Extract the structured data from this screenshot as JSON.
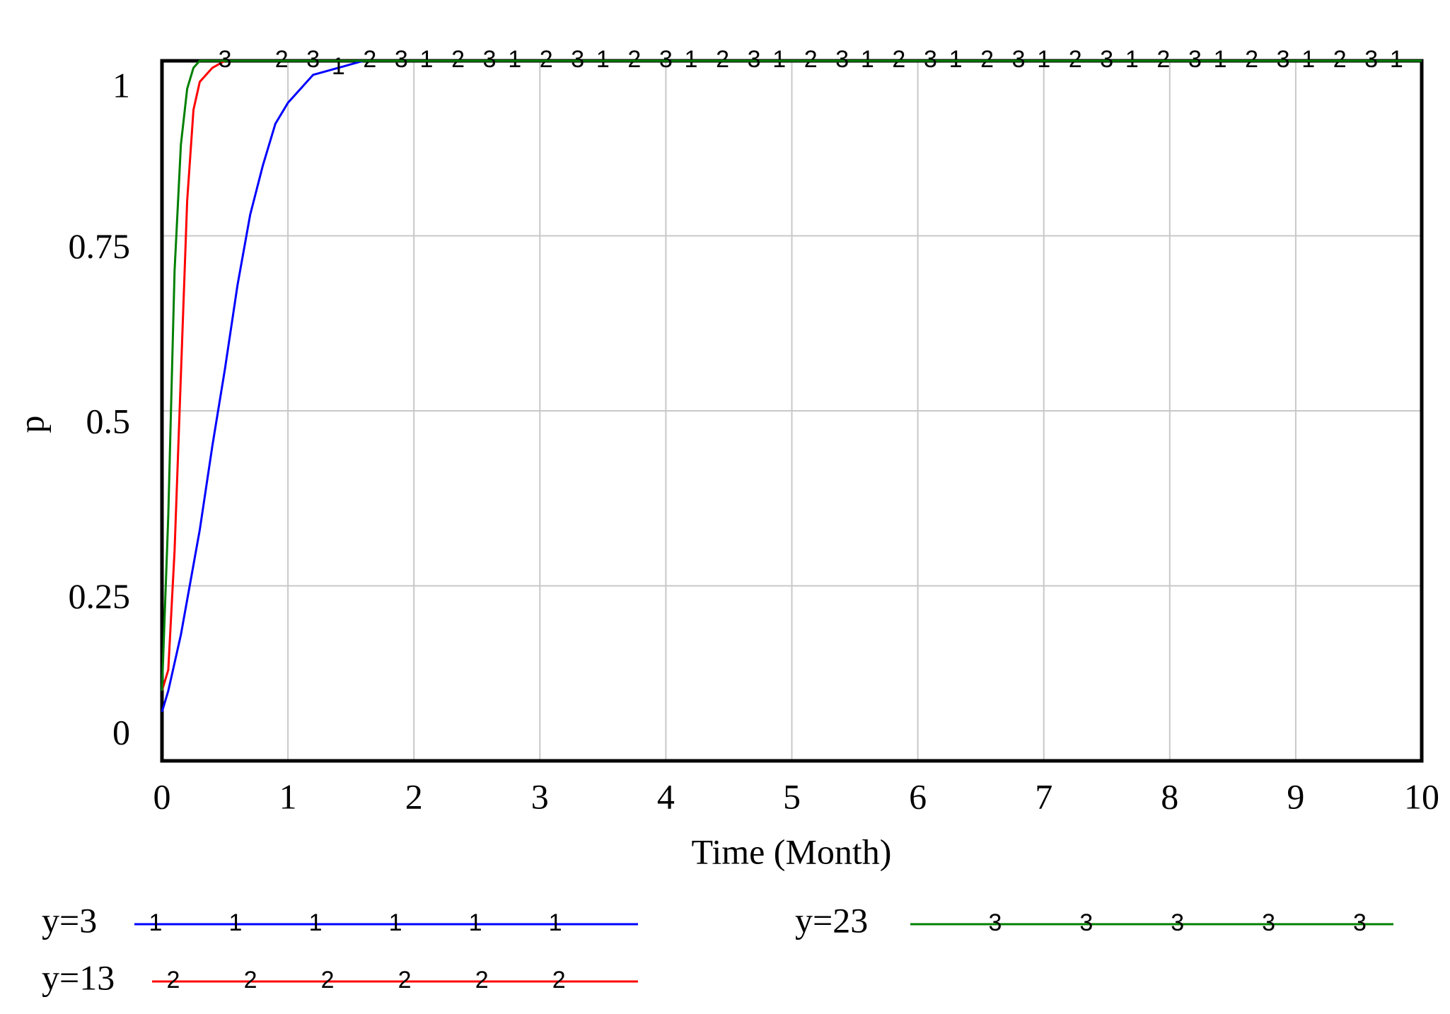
{
  "chart_data": {
    "type": "line",
    "xlabel": "Time (Month)",
    "ylabel": "p",
    "x": [
      0,
      0.05,
      0.1,
      0.15,
      0.2,
      0.25,
      0.3,
      0.4,
      0.5,
      0.6,
      0.7,
      0.8,
      0.9,
      1,
      1.2,
      1.4,
      1.6,
      2,
      3,
      4,
      5,
      6,
      7,
      8,
      9,
      10
    ],
    "series": [
      {
        "name": "y=3",
        "color": "#0000ff",
        "marker_label": "1",
        "values": [
          0.07,
          0.1,
          0.14,
          0.18,
          0.23,
          0.28,
          0.33,
          0.45,
          0.56,
          0.68,
          0.78,
          0.85,
          0.91,
          0.94,
          0.98,
          0.99,
          1,
          1,
          1,
          1,
          1,
          1,
          1,
          1,
          1,
          1
        ]
      },
      {
        "name": "y=13",
        "color": "#ff0000",
        "marker_label": "2",
        "values": [
          0.1,
          0.13,
          0.3,
          0.55,
          0.8,
          0.93,
          0.97,
          0.99,
          1,
          1,
          1,
          1,
          1,
          1,
          1,
          1,
          1,
          1,
          1,
          1,
          1,
          1,
          1,
          1,
          1,
          1
        ]
      },
      {
        "name": "y=23",
        "color": "#008000",
        "marker_label": "3",
        "values": [
          0.1,
          0.35,
          0.7,
          0.88,
          0.96,
          0.99,
          1,
          1,
          1,
          1,
          1,
          1,
          1,
          1,
          1,
          1,
          1,
          1,
          1,
          1,
          1,
          1,
          1,
          1,
          1,
          1
        ]
      }
    ],
    "xlim": [
      0,
      10
    ],
    "xticks": [
      0,
      1,
      2,
      3,
      4,
      5,
      6,
      7,
      8,
      9,
      10
    ],
    "ylim": [
      0,
      1
    ],
    "yticks": [
      0,
      0.25,
      0.5,
      0.75,
      1
    ],
    "grid": true
  }
}
